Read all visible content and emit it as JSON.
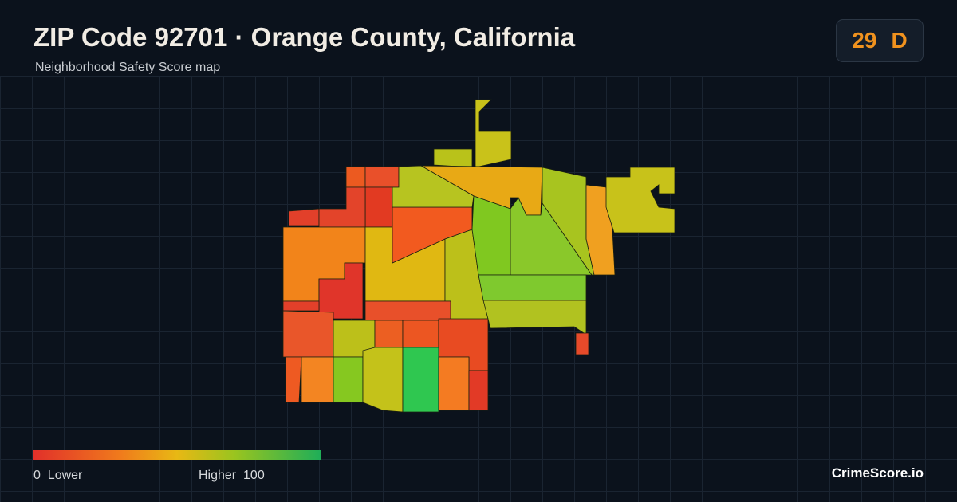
{
  "header": {
    "title": "ZIP Code 92701 · Orange County, California",
    "subtitle": "Neighborhood Safety Score map"
  },
  "score": {
    "value": 29,
    "grade": "D"
  },
  "legend": {
    "min": 0,
    "min_label": "Lower",
    "max_label": "Higher",
    "max": 100
  },
  "brand": "CrimeScore.io"
}
